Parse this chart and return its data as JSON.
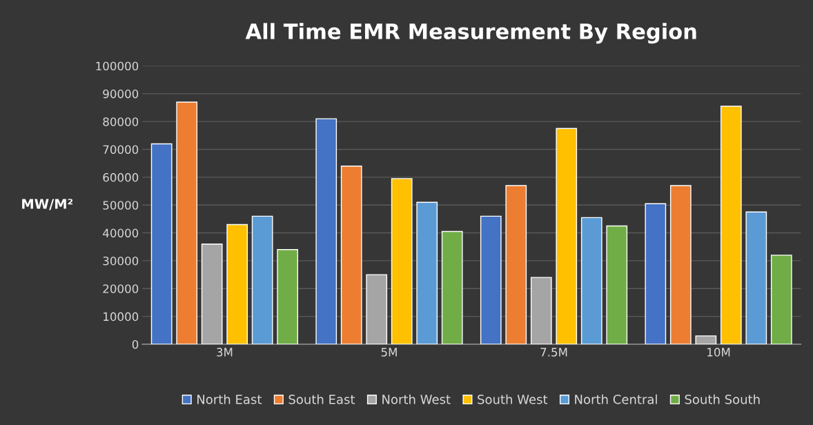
{
  "chart_data": {
    "type": "bar",
    "title": "All Time EMR Measurement By Region",
    "ylabel": "MW/M²",
    "categories": [
      "3M",
      "5M",
      "7.5M",
      "10M"
    ],
    "series": [
      {
        "name": "North East",
        "color": "#4472c4",
        "values": [
          72000,
          81000,
          46000,
          50500
        ]
      },
      {
        "name": "South East",
        "color": "#ed7d31",
        "values": [
          87000,
          64000,
          57000,
          57000
        ]
      },
      {
        "name": "North West",
        "color": "#a5a5a5",
        "values": [
          36000,
          25000,
          24000,
          3000
        ]
      },
      {
        "name": "South West",
        "color": "#ffc000",
        "values": [
          43000,
          59500,
          77500,
          85500
        ]
      },
      {
        "name": "North Central",
        "color": "#5b9bd5",
        "values": [
          46000,
          51000,
          45500,
          47500
        ]
      },
      {
        "name": "South South",
        "color": "#70ad47",
        "values": [
          34000,
          40500,
          42500,
          32000
        ]
      }
    ],
    "ylim": [
      0,
      100000
    ],
    "yticks": [
      0,
      10000,
      20000,
      30000,
      40000,
      50000,
      60000,
      70000,
      80000,
      90000,
      100000
    ],
    "grid": "y",
    "legend": "bottom"
  }
}
